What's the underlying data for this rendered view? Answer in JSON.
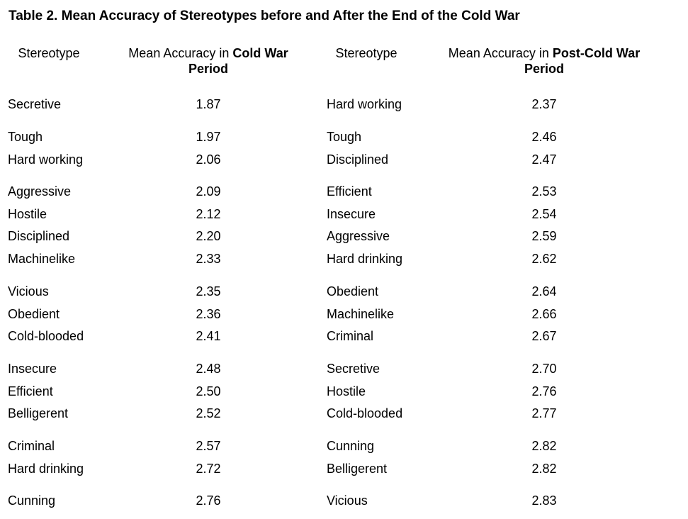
{
  "title": "Table 2.  Mean Accuracy of Stereotypes before and After the End of the Cold War",
  "headers": {
    "stereotype_1": "Stereotype",
    "accuracy_1_prefix": "Mean Accuracy in ",
    "accuracy_1_bold": "Cold War",
    "accuracy_1_line2": "Period",
    "stereotype_2": "Stereotype",
    "accuracy_2_prefix": "Mean Accuracy in ",
    "accuracy_2_bold": "Post-Cold War",
    "accuracy_2_line2": "Period"
  },
  "rows": [
    {
      "cw_stereotype": "Secretive",
      "cw_value": "1.87",
      "pcw_stereotype": "Hard working",
      "pcw_value": "2.37"
    },
    {
      "cw_stereotype": "Tough",
      "cw_value": "1.97",
      "pcw_stereotype": "Tough",
      "pcw_value": "2.46"
    },
    {
      "cw_stereotype": "Hard working",
      "cw_value": "2.06",
      "pcw_stereotype": "Disciplined",
      "pcw_value": "2.47"
    },
    {
      "cw_stereotype": "Aggressive",
      "cw_value": "2.09",
      "pcw_stereotype": "Efficient",
      "pcw_value": "2.53"
    },
    {
      "cw_stereotype": "Hostile",
      "cw_value": "2.12",
      "pcw_stereotype": "Insecure",
      "pcw_value": "2.54"
    },
    {
      "cw_stereotype": "Disciplined",
      "cw_value": "2.20",
      "pcw_stereotype": "Aggressive",
      "pcw_value": "2.59"
    },
    {
      "cw_stereotype": "Machinelike",
      "cw_value": "2.33",
      "pcw_stereotype": "Hard drinking",
      "pcw_value": "2.62"
    },
    {
      "cw_stereotype": "Vicious",
      "cw_value": "2.35",
      "pcw_stereotype": "Obedient",
      "pcw_value": "2.64"
    },
    {
      "cw_stereotype": "Obedient",
      "cw_value": "2.36",
      "pcw_stereotype": "Machinelike",
      "pcw_value": "2.66"
    },
    {
      "cw_stereotype": "Cold-blooded",
      "cw_value": "2.41",
      "pcw_stereotype": "Criminal",
      "pcw_value": "2.67"
    },
    {
      "cw_stereotype": "Insecure",
      "cw_value": "2.48",
      "pcw_stereotype": "Secretive",
      "pcw_value": "2.70"
    },
    {
      "cw_stereotype": "Efficient",
      "cw_value": "2.50",
      "pcw_stereotype": "Hostile",
      "pcw_value": "2.76"
    },
    {
      "cw_stereotype": "Belligerent",
      "cw_value": "2.52",
      "pcw_stereotype": "Cold-blooded",
      "pcw_value": "2.77"
    },
    {
      "cw_stereotype": "Criminal",
      "cw_value": "2.57",
      "pcw_stereotype": "Cunning",
      "pcw_value": "2.82"
    },
    {
      "cw_stereotype": "Hard drinking",
      "cw_value": "2.72",
      "pcw_stereotype": "Belligerent",
      "pcw_value": "2.82"
    },
    {
      "cw_stereotype": "Cunning",
      "cw_value": "2.76",
      "pcw_stereotype": "Vicious",
      "pcw_value": "2.83"
    }
  ]
}
